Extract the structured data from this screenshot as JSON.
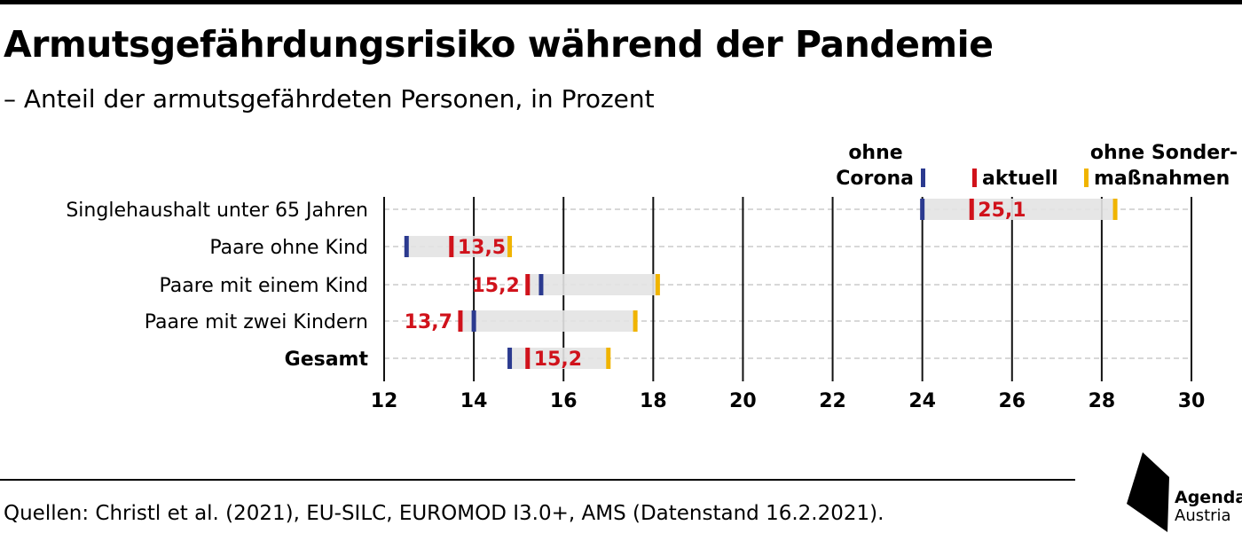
{
  "title": "Armutsgefährdungsrisiko während der Pandemie",
  "subtitle": "– Anteil der armutsgefährdeten Personen, in Prozent",
  "source": "Quellen: Christl et al. (2021), EU-SILC, EUROMOD I3.0+, AMS (Datenstand 16.2.2021).",
  "logo": {
    "line1": "Agenda",
    "line2": "Austria"
  },
  "colors": {
    "ohne_corona": "#2b3a8f",
    "aktuell": "#d0121b",
    "ohne_sondermassnahmen": "#f0b400",
    "range": "#e3e3e3",
    "grid": "#111111"
  },
  "chart_data": {
    "type": "dot-range",
    "title": "Armutsgefährdungsrisiko während der Pandemie",
    "subtitle": "– Anteil der armutsgefährdeten Personen, in Prozent",
    "xlim": [
      12,
      30
    ],
    "xticks": [
      "12",
      "14",
      "16",
      "18",
      "20",
      "22",
      "24",
      "26",
      "28",
      "30"
    ],
    "legend": {
      "ohne_corona": [
        "ohne",
        "Corona"
      ],
      "aktuell": [
        "aktuell"
      ],
      "ohne_sondermassnahmen": [
        "ohne Sonder-",
        "maßnahmen"
      ]
    },
    "legend_position": "top-right",
    "categories": [
      "Singlehaushalt unter 65 Jahren",
      "Paare ohne Kind",
      "Paare mit einem Kind",
      "Paare mit zwei Kindern",
      "Gesamt"
    ],
    "series": [
      {
        "key": "ohne_corona",
        "values": [
          24.0,
          12.5,
          15.5,
          14.0,
          14.8
        ]
      },
      {
        "key": "aktuell",
        "values": [
          25.1,
          13.5,
          15.2,
          13.7,
          15.2
        ]
      },
      {
        "key": "ohne_sondermassnahmen",
        "values": [
          28.3,
          14.8,
          18.1,
          17.6,
          17.0
        ]
      }
    ],
    "aktuell_labels": [
      "25,1",
      "13,5",
      "15,2",
      "13,7",
      "15,2"
    ],
    "label_side": [
      "right",
      "right",
      "left",
      "left",
      "right"
    ]
  }
}
